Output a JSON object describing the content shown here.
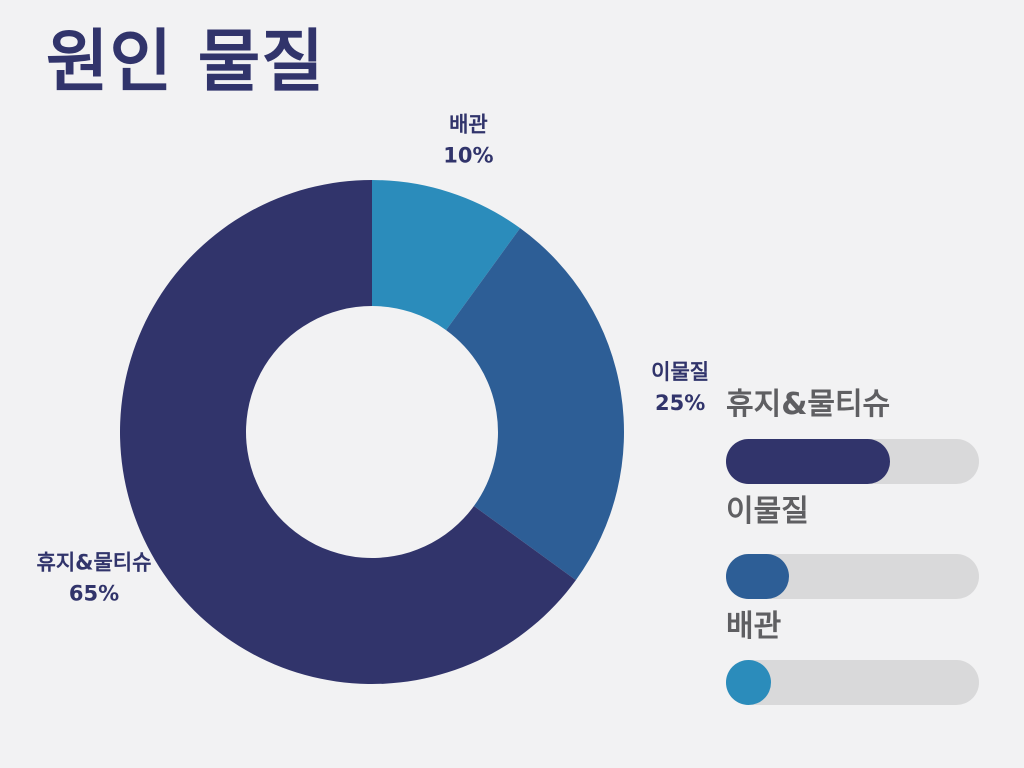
{
  "title": "원인 물질",
  "chart_data": {
    "type": "pie",
    "donut": true,
    "categories": [
      "배관",
      "이물질",
      "휴지&물티슈"
    ],
    "values": [
      10,
      25,
      65
    ],
    "value_labels": [
      "10%",
      "25%",
      "65%"
    ],
    "colors": [
      "#2b8cbb",
      "#2d5e96",
      "#31346b"
    ]
  },
  "legend": [
    {
      "label": "휴지&물티슈",
      "value": 65,
      "color": "#31346b"
    },
    {
      "label": "이물질",
      "value": 25,
      "color": "#2d5e96"
    },
    {
      "label": "배관",
      "value": 10,
      "color": "#2b8cbb"
    }
  ],
  "colors": {
    "background": "#f2f2f3",
    "title": "#31346b",
    "track": "#d9d9da",
    "legend_text": "#5f5f62"
  }
}
